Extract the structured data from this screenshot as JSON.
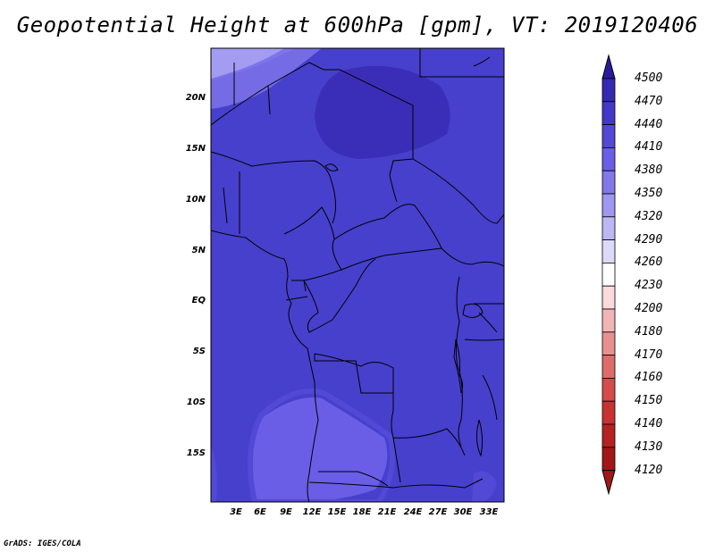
{
  "title": "Geopotential Height at 600hPa [gpm], VT: 2019120406",
  "credit": "GrADS: IGES/COLA",
  "map": {
    "y_ticks": [
      "20N",
      "15N",
      "10N",
      "5N",
      "EQ",
      "5S",
      "10S",
      "15S"
    ],
    "x_ticks": [
      "3E",
      "6E",
      "9E",
      "12E",
      "15E",
      "18E",
      "21E",
      "24E",
      "27E",
      "30E",
      "33E"
    ],
    "fill_colors": {
      "4380": "#6a5ee6",
      "4410": "#5249d6",
      "4440": "#4338c8",
      "4470": "#3528b2",
      "land_background": "#4640cc"
    }
  },
  "colorbar": {
    "levels": [
      "4500",
      "4470",
      "4440",
      "4410",
      "4380",
      "4350",
      "4320",
      "4290",
      "4260",
      "4230",
      "4200",
      "4180",
      "4170",
      "4160",
      "4150",
      "4140",
      "4130",
      "4120"
    ],
    "colors": [
      "#2a1a9c",
      "#3528b2",
      "#4338c8",
      "#5249d6",
      "#6a5ee6",
      "#8178ea",
      "#9f98f0",
      "#bdb8f4",
      "#dcdaf8",
      "#ffffff",
      "#fadada",
      "#f2b5b5",
      "#e89090",
      "#de6c6c",
      "#d44c4c",
      "#c83232",
      "#b52222",
      "#a01818"
    ]
  }
}
